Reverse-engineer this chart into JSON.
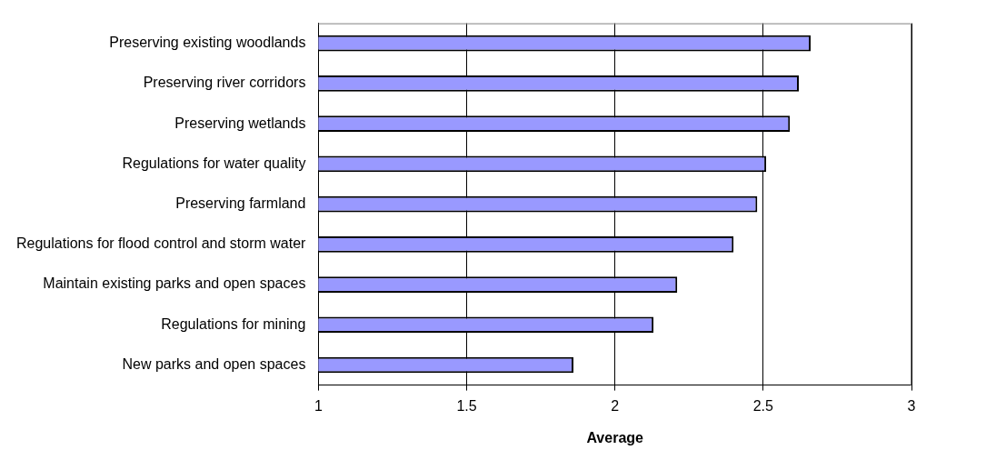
{
  "chart_data": {
    "type": "bar",
    "orientation": "horizontal",
    "xlabel": "Average",
    "categories": [
      "Preserving existing woodlands",
      "Preserving river corridors",
      "Preserving wetlands",
      "Regulations for water quality",
      "Preserving farmland",
      "Regulations for flood control and storm water",
      "Maintain existing parks and open spaces",
      "Regulations for mining",
      "New parks and open spaces"
    ],
    "values": [
      2.66,
      2.62,
      2.59,
      2.51,
      2.48,
      2.4,
      2.21,
      2.13,
      1.86
    ],
    "color": "#9999ff",
    "xlim": [
      1,
      3
    ],
    "xticks": [
      1,
      1.5,
      2,
      2.5,
      3
    ],
    "grid": "x",
    "legend": false
  }
}
